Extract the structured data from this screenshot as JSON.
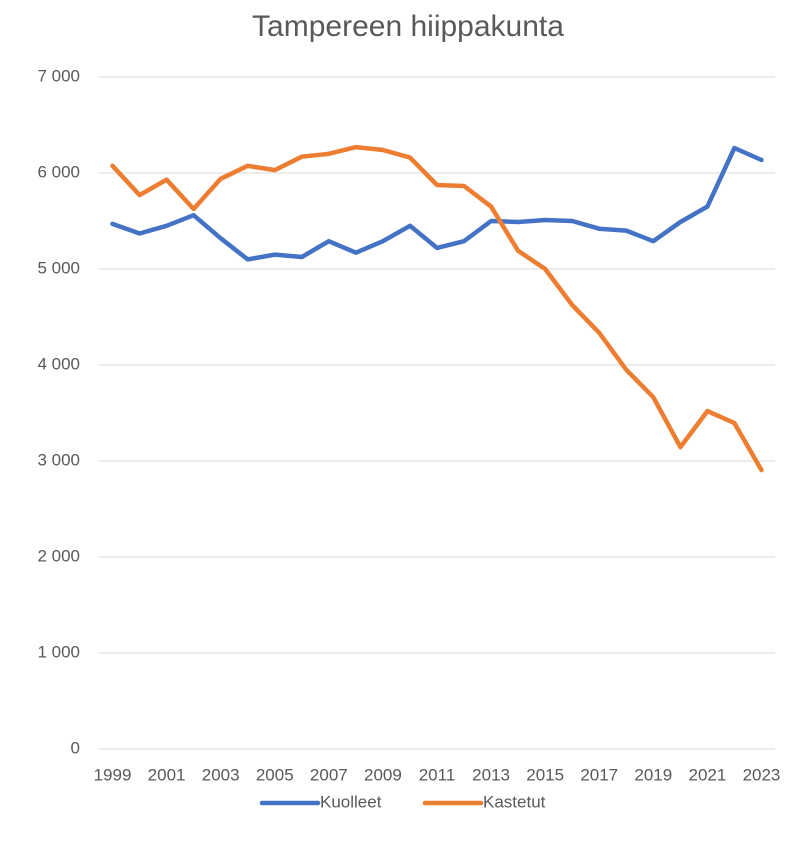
{
  "chart_data": {
    "type": "line",
    "title": "Tampereen hiippakunta",
    "categories": [
      "1999",
      null,
      "2001",
      null,
      "2003",
      null,
      "2005",
      null,
      "2007",
      null,
      "2009",
      null,
      "2011",
      null,
      "2013",
      null,
      "2015",
      null,
      "2017",
      null,
      "2019",
      null,
      "2021",
      null,
      "2023"
    ],
    "series": [
      {
        "name": "Kuolleet",
        "color": "#4472c4",
        "values": [
          5470,
          5370,
          5450,
          5560,
          5320,
          5100,
          5150,
          5125,
          5290,
          5170,
          5290,
          5450,
          5220,
          5290,
          5500,
          5490,
          5510,
          5500,
          5420,
          5400,
          5290,
          5490,
          5650,
          6260,
          6135
        ]
      },
      {
        "name": "Kastetut",
        "color": "#ed7d31",
        "values": [
          6075,
          5770,
          5930,
          5625,
          5940,
          6075,
          6030,
          6170,
          6200,
          6270,
          6240,
          6160,
          5875,
          5865,
          5650,
          5190,
          5000,
          4625,
          4335,
          3950,
          3665,
          3145,
          3520,
          3395,
          2905
        ]
      }
    ],
    "ylim": [
      0,
      7000
    ],
    "yticks": [
      0,
      {
        "value": 1000,
        "label": "1 000"
      },
      {
        "value": 2000,
        "label": "2 000"
      },
      {
        "value": 3000,
        "label": "3 000"
      },
      {
        "value": 4000,
        "label": "4 000"
      },
      {
        "value": 5000,
        "label": "5 000"
      },
      {
        "value": 6000,
        "label": "6 000"
      },
      {
        "value": 7000,
        "label": "7 000"
      }
    ],
    "grid": true,
    "legend": "bottom"
  }
}
